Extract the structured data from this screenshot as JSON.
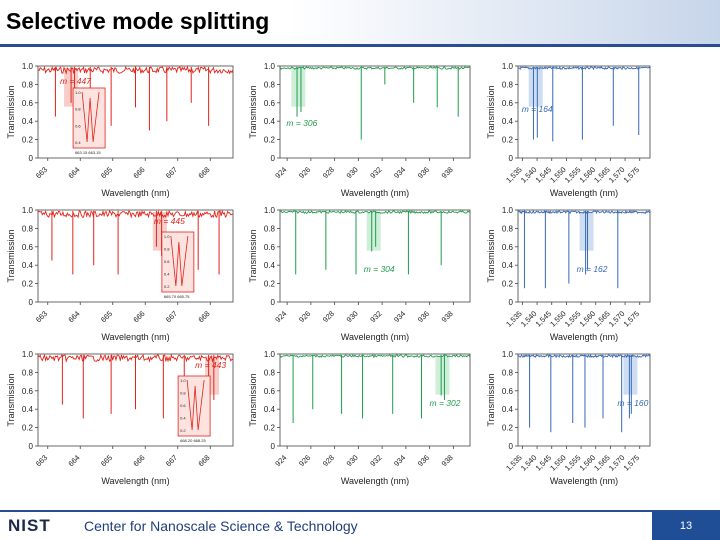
{
  "slide": {
    "title": "Selective mode splitting",
    "logo": "NIST",
    "footer_text": "Center for Nanoscale Science & Technology",
    "page_number": "13",
    "accent": "#1f4e96"
  },
  "chart_data": [
    {
      "type": "line",
      "row": 0,
      "col": 0,
      "series_color": "#e2231a",
      "highlight_color": "#f6c8c4",
      "xlabel": "Wavelength (nm)",
      "ylabel": "Transmission",
      "xlim": [
        663,
        668.6
      ],
      "ylim": [
        0,
        1.0
      ],
      "xticks": [
        "663",
        "664",
        "665",
        "666",
        "667",
        "668"
      ],
      "yticks": [
        "0",
        "0.2",
        "0.4",
        "0.6",
        "0.8",
        "1.0"
      ],
      "dips": [
        {
          "x": 663.5,
          "depth": 0.45
        },
        {
          "x": 663.95,
          "depth": 0.6
        },
        {
          "x": 664.05,
          "depth": 0.55
        },
        {
          "x": 664.5,
          "depth": 0.3
        },
        {
          "x": 665.1,
          "depth": 0.35
        },
        {
          "x": 665.8,
          "depth": 0.55
        },
        {
          "x": 666.2,
          "depth": 0.3
        },
        {
          "x": 666.7,
          "depth": 0.4
        },
        {
          "x": 667.4,
          "depth": 0.6
        },
        {
          "x": 667.9,
          "depth": 0.35
        }
      ],
      "mode_label": "m = 447",
      "mode_x": 663.95,
      "label_pos": "top-left",
      "inset": {
        "ticks_x": [
          "663.15",
          "663.15"
        ],
        "ticks_y": [
          "1.0",
          "0.8",
          "0.6",
          "0.4"
        ]
      }
    },
    {
      "type": "line",
      "row": 0,
      "col": 1,
      "series_color": "#1e9c4b",
      "highlight_color": "#c9ecd5",
      "xlabel": "Wavelength (nm)",
      "ylabel": "Transmission",
      "xlim": [
        924,
        938.5
      ],
      "ylim": [
        0,
        1.0
      ],
      "xticks": [
        "924",
        "926",
        "928",
        "930",
        "932",
        "934",
        "936",
        "938"
      ],
      "yticks": [
        "0",
        "0.2",
        "0.4",
        "0.6",
        "0.8",
        "1.0"
      ],
      "dips": [
        {
          "x": 925.3,
          "depth": 0.45
        },
        {
          "x": 925.6,
          "depth": 0.5
        },
        {
          "x": 930.2,
          "depth": 0.2
        },
        {
          "x": 932.0,
          "depth": 0.8
        },
        {
          "x": 934.2,
          "depth": 0.6
        },
        {
          "x": 936.0,
          "depth": 0.55
        },
        {
          "x": 937.6,
          "depth": 0.45
        }
      ],
      "mode_label": "m = 306",
      "mode_x": 925.4,
      "label_pos": "bottom-left"
    },
    {
      "type": "line",
      "row": 0,
      "col": 2,
      "series_color": "#3569b8",
      "highlight_color": "#c9d9ef",
      "xlabel": "Wavelength (nm)",
      "ylabel": "Transmission",
      "xlim": [
        1535,
        1576
      ],
      "ylim": [
        0,
        1.0
      ],
      "xticks": [
        "1,535",
        "1,540",
        "1,545",
        "1,550",
        "1,555",
        "1,560",
        "1,565",
        "1,570",
        "1,575"
      ],
      "yticks": [
        "0",
        "0.2",
        "0.4",
        "0.6",
        "0.8",
        "1.0"
      ],
      "dips": [
        {
          "x": 1539.8,
          "depth": 0.2
        },
        {
          "x": 1541.0,
          "depth": 0.22
        },
        {
          "x": 1545.8,
          "depth": 0.18
        },
        {
          "x": 1555.0,
          "depth": 0.2
        },
        {
          "x": 1564.6,
          "depth": 0.35
        },
        {
          "x": 1572.5,
          "depth": 0.25
        }
      ],
      "mode_label": "m = 164",
      "mode_x": 1540.5,
      "label_pos": "mid-left"
    },
    {
      "type": "line",
      "row": 1,
      "col": 0,
      "series_color": "#e2231a",
      "highlight_color": "#f6c8c4",
      "xlabel": "Wavelength (nm)",
      "ylabel": "Transmission",
      "xlim": [
        663,
        668.6
      ],
      "ylim": [
        0,
        1.0
      ],
      "xticks": [
        "663",
        "664",
        "665",
        "666",
        "667",
        "668"
      ],
      "yticks": [
        "0",
        "0.2",
        "0.4",
        "0.6",
        "0.8",
        "1.0"
      ],
      "dips": [
        {
          "x": 663.4,
          "depth": 0.45
        },
        {
          "x": 664.0,
          "depth": 0.3
        },
        {
          "x": 664.6,
          "depth": 0.4
        },
        {
          "x": 665.3,
          "depth": 0.3
        },
        {
          "x": 666.4,
          "depth": 0.6
        },
        {
          "x": 666.55,
          "depth": 0.5
        },
        {
          "x": 667.6,
          "depth": 0.35
        },
        {
          "x": 668.2,
          "depth": 0.3
        }
      ],
      "mode_label": "m = 445",
      "mode_x": 666.5,
      "label_pos": "top-mid",
      "inset": {
        "ticks_x": [
          "665.70",
          "665.75"
        ],
        "ticks_y": [
          "1.0",
          "0.8",
          "0.6",
          "0.4",
          "0.2"
        ]
      }
    },
    {
      "type": "line",
      "row": 1,
      "col": 1,
      "series_color": "#1e9c4b",
      "highlight_color": "#c9ecd5",
      "xlabel": "Wavelength (nm)",
      "ylabel": "Transmission",
      "xlim": [
        924,
        938.5
      ],
      "ylim": [
        0,
        1.0
      ],
      "xticks": [
        "924",
        "926",
        "928",
        "930",
        "932",
        "934",
        "936",
        "938"
      ],
      "yticks": [
        "0",
        "0.2",
        "0.4",
        "0.6",
        "0.8",
        "1.0"
      ],
      "dips": [
        {
          "x": 925.2,
          "depth": 0.3
        },
        {
          "x": 927.5,
          "depth": 0.35
        },
        {
          "x": 929.8,
          "depth": 0.3
        },
        {
          "x": 931.0,
          "depth": 0.55
        },
        {
          "x": 931.3,
          "depth": 0.6
        },
        {
          "x": 933.8,
          "depth": 0.3
        },
        {
          "x": 936.3,
          "depth": 0.4
        }
      ],
      "mode_label": "m = 304",
      "mode_x": 931.15,
      "label_pos": "bottom-mid"
    },
    {
      "type": "line",
      "row": 1,
      "col": 2,
      "series_color": "#3569b8",
      "highlight_color": "#c9d9ef",
      "xlabel": "Wavelength (nm)",
      "ylabel": "Transmission",
      "xlim": [
        1535,
        1576
      ],
      "ylim": [
        0,
        1.0
      ],
      "xticks": [
        "1,535",
        "1,540",
        "1,545",
        "1,550",
        "1,555",
        "1,560",
        "1,565",
        "1,570",
        "1,575"
      ],
      "yticks": [
        "0",
        "0.2",
        "0.4",
        "0.6",
        "0.8",
        "1.0"
      ],
      "dips": [
        {
          "x": 1537.0,
          "depth": 0.15
        },
        {
          "x": 1543.5,
          "depth": 0.15
        },
        {
          "x": 1550.8,
          "depth": 0.2
        },
        {
          "x": 1556.0,
          "depth": 0.3
        },
        {
          "x": 1556.6,
          "depth": 0.35
        },
        {
          "x": 1566.0,
          "depth": 0.15
        }
      ],
      "mode_label": "m = 162",
      "mode_x": 1556.3,
      "label_pos": "bottom-mid"
    },
    {
      "type": "line",
      "row": 2,
      "col": 0,
      "series_color": "#e2231a",
      "highlight_color": "#f6c8c4",
      "xlabel": "Wavelength (nm)",
      "ylabel": "Transmission",
      "xlim": [
        663,
        668.6
      ],
      "ylim": [
        0,
        1.0
      ],
      "xticks": [
        "663",
        "664",
        "665",
        "666",
        "667",
        "668"
      ],
      "yticks": [
        "0",
        "0.2",
        "0.4",
        "0.6",
        "0.8",
        "1.0"
      ],
      "dips": [
        {
          "x": 663.7,
          "depth": 0.45
        },
        {
          "x": 664.3,
          "depth": 0.3
        },
        {
          "x": 665.1,
          "depth": 0.35
        },
        {
          "x": 665.8,
          "depth": 0.4
        },
        {
          "x": 666.6,
          "depth": 0.3
        },
        {
          "x": 667.2,
          "depth": 0.35
        },
        {
          "x": 667.9,
          "depth": 0.55
        },
        {
          "x": 668.05,
          "depth": 0.5
        }
      ],
      "mode_label": "m = 443",
      "mode_x": 668.0,
      "label_pos": "top-right",
      "inset": {
        "ticks_x": [
          "668.20",
          "668.25"
        ],
        "ticks_y": [
          "1.0",
          "0.8",
          "0.6",
          "0.4",
          "0.2"
        ]
      }
    },
    {
      "type": "line",
      "row": 2,
      "col": 1,
      "series_color": "#1e9c4b",
      "highlight_color": "#c9ecd5",
      "xlabel": "Wavelength (nm)",
      "ylabel": "Transmission",
      "xlim": [
        924,
        938.5
      ],
      "ylim": [
        0,
        1.0
      ],
      "xticks": [
        "924",
        "926",
        "928",
        "930",
        "932",
        "934",
        "936",
        "938"
      ],
      "yticks": [
        "0",
        "0.2",
        "0.4",
        "0.6",
        "0.8",
        "1.0"
      ],
      "dips": [
        {
          "x": 925.0,
          "depth": 0.25
        },
        {
          "x": 926.5,
          "depth": 0.4
        },
        {
          "x": 928.7,
          "depth": 0.35
        },
        {
          "x": 930.3,
          "depth": 0.3
        },
        {
          "x": 932.6,
          "depth": 0.35
        },
        {
          "x": 934.8,
          "depth": 0.3
        },
        {
          "x": 936.3,
          "depth": 0.55
        },
        {
          "x": 936.55,
          "depth": 0.5
        }
      ],
      "mode_label": "m = 302",
      "mode_x": 936.4,
      "label_pos": "bottom-right"
    },
    {
      "type": "line",
      "row": 2,
      "col": 2,
      "series_color": "#3569b8",
      "highlight_color": "#c9d9ef",
      "xlabel": "Wavelength (nm)",
      "ylabel": "Transmission",
      "xlim": [
        1535,
        1576
      ],
      "ylim": [
        0,
        1.0
      ],
      "xticks": [
        "1,535",
        "1,540",
        "1,545",
        "1,550",
        "1,555",
        "1,560",
        "1,565",
        "1,570",
        "1,575"
      ],
      "yticks": [
        "0",
        "0.2",
        "0.4",
        "0.6",
        "0.8",
        "1.0"
      ],
      "dips": [
        {
          "x": 1538.6,
          "depth": 0.2
        },
        {
          "x": 1545.2,
          "depth": 0.15
        },
        {
          "x": 1552.0,
          "depth": 0.25
        },
        {
          "x": 1555.8,
          "depth": 0.2
        },
        {
          "x": 1561.4,
          "depth": 0.3
        },
        {
          "x": 1567.2,
          "depth": 0.15
        },
        {
          "x": 1569.6,
          "depth": 0.3
        },
        {
          "x": 1570.2,
          "depth": 0.35
        }
      ],
      "mode_label": "m = 160",
      "mode_x": 1569.9,
      "label_pos": "bottom-right"
    }
  ]
}
